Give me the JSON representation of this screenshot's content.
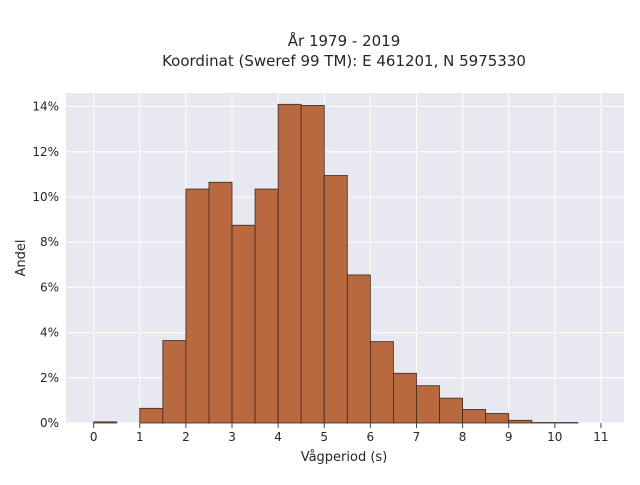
{
  "chart_data": {
    "type": "bar",
    "title": "År 1979 - 2019",
    "subtitle": "Koordinat (Sweref 99 TM): E 461201, N 5975330",
    "xlabel": "Vågperiod (s)",
    "ylabel": "Andel",
    "bin_width": 0.5,
    "bins": [
      {
        "x0": 0.0,
        "x1": 0.5,
        "value": 0.05
      },
      {
        "x0": 0.5,
        "x1": 1.0,
        "value": 0.0
      },
      {
        "x0": 1.0,
        "x1": 1.5,
        "value": 0.65
      },
      {
        "x0": 1.5,
        "x1": 2.0,
        "value": 3.65
      },
      {
        "x0": 2.0,
        "x1": 2.5,
        "value": 10.35
      },
      {
        "x0": 2.5,
        "x1": 3.0,
        "value": 10.65
      },
      {
        "x0": 3.0,
        "x1": 3.5,
        "value": 8.75
      },
      {
        "x0": 3.5,
        "x1": 4.0,
        "value": 10.35
      },
      {
        "x0": 4.0,
        "x1": 4.5,
        "value": 14.1
      },
      {
        "x0": 4.5,
        "x1": 5.0,
        "value": 14.05
      },
      {
        "x0": 5.0,
        "x1": 5.5,
        "value": 10.95
      },
      {
        "x0": 5.5,
        "x1": 6.0,
        "value": 6.55
      },
      {
        "x0": 6.0,
        "x1": 6.5,
        "value": 3.6
      },
      {
        "x0": 6.5,
        "x1": 7.0,
        "value": 2.2
      },
      {
        "x0": 7.0,
        "x1": 7.5,
        "value": 1.65
      },
      {
        "x0": 7.5,
        "x1": 8.0,
        "value": 1.1
      },
      {
        "x0": 8.0,
        "x1": 8.5,
        "value": 0.6
      },
      {
        "x0": 8.5,
        "x1": 9.0,
        "value": 0.42
      },
      {
        "x0": 9.0,
        "x1": 9.5,
        "value": 0.12
      },
      {
        "x0": 9.5,
        "x1": 10.0,
        "value": 0.02
      },
      {
        "x0": 10.0,
        "x1": 10.5,
        "value": 0.02
      }
    ],
    "xlim": [
      -0.6,
      11.5
    ],
    "ylim": [
      0,
      14.6
    ],
    "xticks": [
      0,
      1,
      2,
      3,
      4,
      5,
      6,
      7,
      8,
      9,
      10,
      11
    ],
    "yticks": [
      0,
      2,
      4,
      6,
      8,
      10,
      12,
      14
    ],
    "ytick_suffix": "%",
    "grid": true,
    "colors": {
      "bar_fill": "#b9693f",
      "bar_edge": "#3b2a20",
      "plot_background": "#e8e8f0",
      "grid": "#ffffff"
    }
  }
}
